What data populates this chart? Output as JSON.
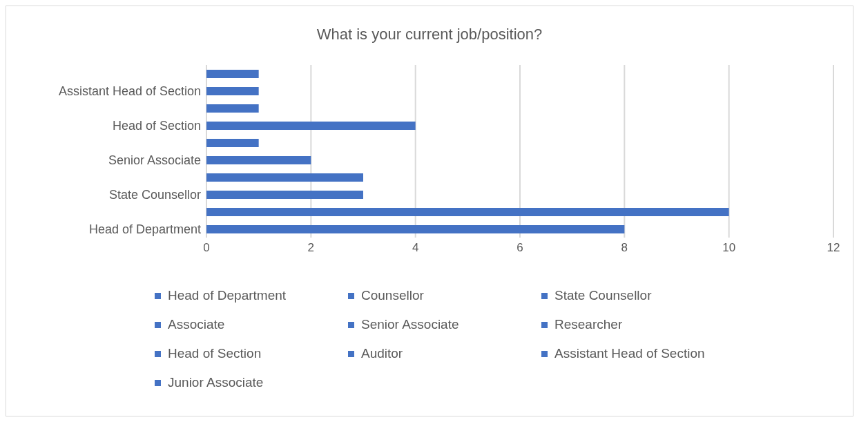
{
  "chart_data": {
    "type": "bar",
    "orientation": "horizontal",
    "stacked": true,
    "title": "What is your current job/position?",
    "categories": [
      null,
      "Assistant Head of Section",
      null,
      "Head of Section",
      null,
      "Senior Associate",
      null,
      "State Counsellor",
      null,
      "Head of Department"
    ],
    "series": [
      {
        "name": "Head of Department",
        "color": "#4472c4",
        "values": [
          null,
          null,
          null,
          null,
          null,
          null,
          null,
          null,
          null,
          8
        ]
      },
      {
        "name": "Counsellor",
        "color": "#4472c4",
        "values": [
          null,
          null,
          null,
          null,
          null,
          null,
          null,
          null,
          10,
          null
        ]
      },
      {
        "name": "State Counsellor",
        "color": "#4472c4",
        "values": [
          null,
          null,
          null,
          null,
          null,
          null,
          null,
          3,
          null,
          null
        ]
      },
      {
        "name": "Associate",
        "color": "#4472c4",
        "values": [
          null,
          null,
          null,
          null,
          null,
          null,
          3,
          null,
          null,
          null
        ]
      },
      {
        "name": "Senior Associate",
        "color": "#4472c4",
        "values": [
          null,
          null,
          null,
          null,
          null,
          2,
          null,
          null,
          null,
          null
        ]
      },
      {
        "name": "Researcher",
        "color": "#4472c4",
        "values": [
          null,
          null,
          null,
          null,
          1,
          null,
          null,
          null,
          null,
          null
        ]
      },
      {
        "name": "Head of Section",
        "color": "#4472c4",
        "values": [
          null,
          null,
          null,
          4,
          null,
          null,
          null,
          null,
          null,
          null
        ]
      },
      {
        "name": "Auditor",
        "color": "#4472c4",
        "values": [
          null,
          null,
          1,
          null,
          null,
          null,
          null,
          null,
          null,
          null
        ]
      },
      {
        "name": "Assistant Head of Section",
        "color": "#4472c4",
        "values": [
          null,
          1,
          null,
          null,
          null,
          null,
          null,
          null,
          null,
          null
        ]
      },
      {
        "name": "Junior Associate",
        "color": "#4472c4",
        "values": [
          1,
          null,
          null,
          null,
          null,
          null,
          null,
          null,
          null,
          null
        ]
      }
    ],
    "xlim": [
      0,
      12
    ],
    "xticks": [
      0,
      2,
      4,
      6,
      8,
      10,
      12
    ],
    "grid": "x",
    "legend": "bottom"
  }
}
